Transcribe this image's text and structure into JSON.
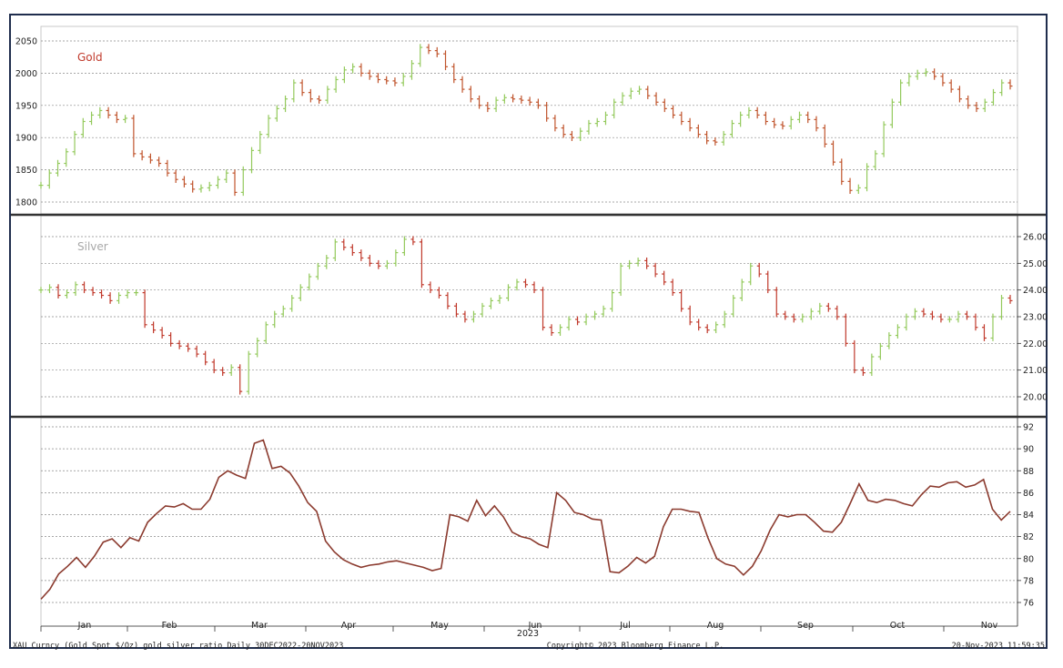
{
  "chart_data": [
    {
      "type": "candlestick",
      "title": "Gold",
      "y_ticks": [
        "1800",
        "1850",
        "1900",
        "1950",
        "2000",
        "2050"
      ],
      "ylim": [
        1780,
        2075
      ],
      "axis_side": "left",
      "colors": {
        "up": "#93c95b",
        "down": "#c0542c",
        "title": "#c0392b"
      },
      "series": [
        {
          "name": "Gold",
          "values": [
            1826,
            1845,
            1860,
            1878,
            1905,
            1925,
            1935,
            1942,
            1935,
            1928,
            1930,
            1875,
            1870,
            1865,
            1860,
            1845,
            1835,
            1828,
            1820,
            1822,
            1826,
            1835,
            1845,
            1815,
            1850,
            1880,
            1905,
            1930,
            1945,
            1960,
            1985,
            1970,
            1960,
            1958,
            1975,
            1990,
            2005,
            2010,
            2000,
            1995,
            1990,
            1988,
            1985,
            1995,
            2015,
            2040,
            2035,
            2030,
            2010,
            1990,
            1975,
            1960,
            1950,
            1945,
            1958,
            1962,
            1960,
            1958,
            1955,
            1950,
            1930,
            1915,
            1905,
            1900,
            1910,
            1922,
            1925,
            1935,
            1955,
            1965,
            1972,
            1975,
            1965,
            1955,
            1945,
            1935,
            1925,
            1915,
            1905,
            1895,
            1893,
            1905,
            1922,
            1935,
            1942,
            1935,
            1925,
            1920,
            1918,
            1928,
            1935,
            1928,
            1915,
            1890,
            1862,
            1832,
            1818,
            1822,
            1855,
            1875,
            1920,
            1955,
            1985,
            1995,
            2000,
            2002,
            1995,
            1985,
            1975,
            1960,
            1950,
            1945,
            1955,
            1970,
            1985,
            1980
          ]
        }
      ]
    },
    {
      "type": "candlestick",
      "title": "Silver",
      "y_ticks": [
        "20.00",
        "21.00",
        "22.00",
        "23.00",
        "24.00",
        "25.00",
        "26.00"
      ],
      "ylim": [
        19.85,
        26.35
      ],
      "axis_side": "right",
      "colors": {
        "up": "#93c95b",
        "down": "#c0392b",
        "title": "#a8a8a8"
      },
      "series": [
        {
          "name": "Silver",
          "values": [
            24.0,
            24.1,
            23.8,
            23.9,
            24.2,
            24.0,
            23.9,
            23.8,
            23.6,
            23.8,
            23.9,
            23.9,
            22.7,
            22.5,
            22.3,
            22.0,
            21.9,
            21.8,
            21.6,
            21.3,
            21.0,
            20.9,
            21.1,
            20.2,
            21.6,
            22.1,
            22.7,
            23.1,
            23.3,
            23.7,
            24.1,
            24.5,
            24.9,
            25.2,
            25.8,
            25.6,
            25.4,
            25.2,
            25.0,
            24.9,
            25.0,
            25.4,
            25.9,
            25.8,
            24.2,
            24.0,
            23.8,
            23.4,
            23.1,
            22.9,
            23.1,
            23.4,
            23.6,
            23.7,
            24.1,
            24.3,
            24.2,
            24.0,
            22.6,
            22.4,
            22.6,
            22.9,
            22.8,
            23.0,
            23.1,
            23.3,
            23.9,
            24.9,
            25.0,
            25.1,
            24.9,
            24.6,
            24.3,
            23.9,
            23.3,
            22.8,
            22.6,
            22.5,
            22.7,
            23.1,
            23.7,
            24.3,
            24.9,
            24.6,
            24.0,
            23.1,
            23.0,
            22.9,
            23.0,
            23.2,
            23.4,
            23.3,
            23.0,
            22.0,
            21.0,
            20.9,
            21.5,
            21.9,
            22.3,
            22.6,
            23.0,
            23.2,
            23.1,
            23.0,
            22.9,
            22.9,
            23.1,
            23.0,
            22.6,
            22.2,
            23.0,
            23.7,
            23.6
          ]
        }
      ]
    },
    {
      "type": "line",
      "y_ticks": [
        "76",
        "78",
        "80",
        "82",
        "84",
        "86",
        "88",
        "90",
        "92"
      ],
      "ylim": [
        75,
        93
      ],
      "axis_side": "right",
      "colors": {
        "line": "#8b3a2e"
      },
      "series": [
        {
          "name": "gold silver ratio",
          "values": [
            76.3,
            77.2,
            78.6,
            79.3,
            80.1,
            79.2,
            80.2,
            81.5,
            81.8,
            81.0,
            81.9,
            81.6,
            83.3,
            84.1,
            84.8,
            84.7,
            85.0,
            84.5,
            84.5,
            85.4,
            87.4,
            88.0,
            87.6,
            87.3,
            90.5,
            90.8,
            88.2,
            88.4,
            87.8,
            86.6,
            85.1,
            84.3,
            81.6,
            80.6,
            79.9,
            79.5,
            79.2,
            79.4,
            79.5,
            79.7,
            79.8,
            79.6,
            79.4,
            79.2,
            78.9,
            79.1,
            84.0,
            83.8,
            83.4,
            85.3,
            83.9,
            84.8,
            83.8,
            82.4,
            82.0,
            81.8,
            81.3,
            81.0,
            86.0,
            85.3,
            84.2,
            84.0,
            83.6,
            83.5,
            78.8,
            78.7,
            79.3,
            80.1,
            79.6,
            80.2,
            82.9,
            84.5,
            84.5,
            84.3,
            84.2,
            81.9,
            80.0,
            79.5,
            79.3,
            78.5,
            79.3,
            80.7,
            82.6,
            84.0,
            83.8,
            84.0,
            84.0,
            83.3,
            82.5,
            82.4,
            83.3,
            85.0,
            86.8,
            85.3,
            85.1,
            85.4,
            85.3,
            85.0,
            84.8,
            85.8,
            86.6,
            86.5,
            86.9,
            87.0,
            86.5,
            86.7,
            87.2,
            84.5,
            83.5,
            84.3
          ]
        }
      ]
    }
  ],
  "x_axis": {
    "months": [
      "Jan",
      "Feb",
      "Mar",
      "Apr",
      "May",
      "Jun",
      "Jul",
      "Aug",
      "Sep",
      "Oct",
      "Nov"
    ],
    "year": "2023"
  },
  "footer": {
    "left": "XAU Curncy (Gold Spot  $/Oz) gold silver ratio  Daily 30DEC2022-20NOV2023",
    "center": "Copyright© 2023 Bloomberg Finance L.P.",
    "right": "20-Nov-2023 11:59:35"
  },
  "colors": {
    "frame": "#1f2d4d",
    "panel_border": "#2a2a2a",
    "grid": "#8a8a8a"
  }
}
